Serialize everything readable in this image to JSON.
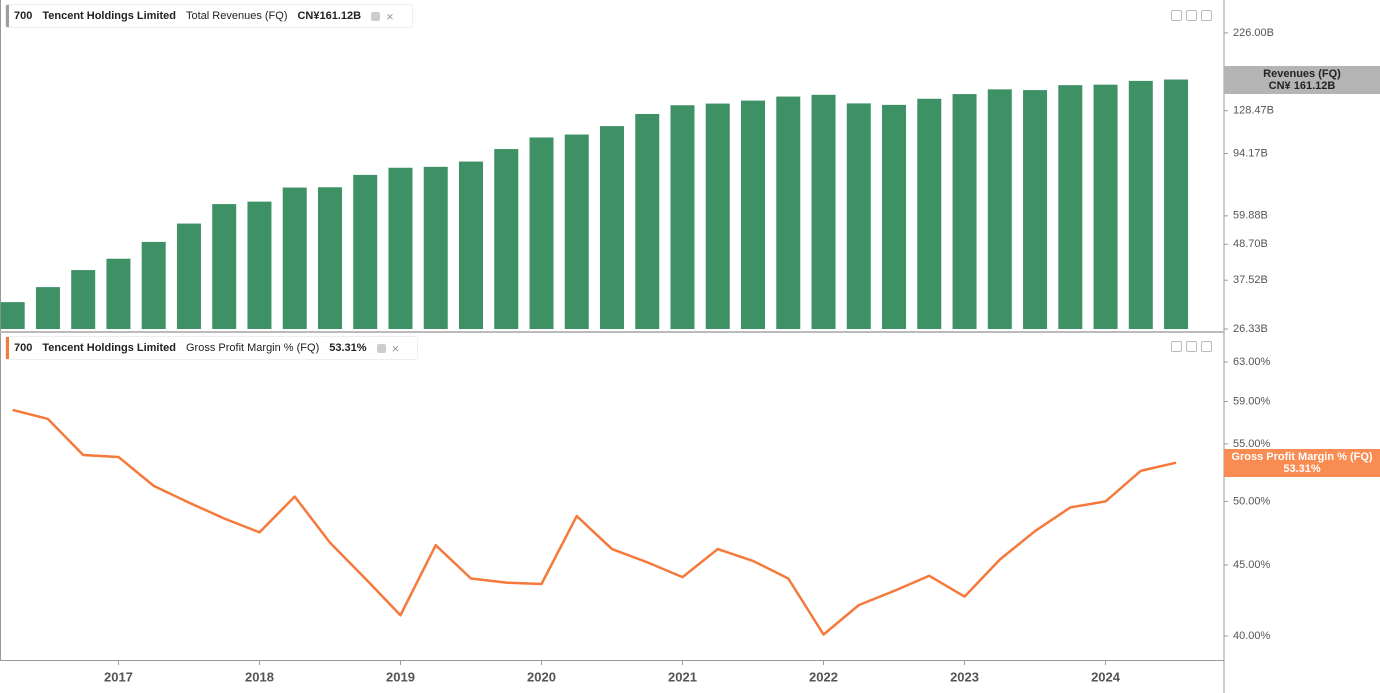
{
  "chart_data": [
    {
      "type": "bar",
      "log_scale": true,
      "ticker": "700",
      "company": "Tencent Holdings Limited",
      "legend_value": "CN¥161.12B",
      "price_label": [
        "Revenues (FQ)",
        "CN¥ 161.12B"
      ],
      "label_color": "#b4b4b4",
      "marker_color": "#9e9e9e",
      "series": [
        {
          "name": "Total Revenues (FQ)",
          "color": "#3d9165",
          "values": [
            32.0,
            35.69,
            40.39,
            43.86,
            49.55,
            56.61,
            65.21,
            66.39,
            73.53,
            73.68,
            80.6,
            84.9,
            85.47,
            88.82,
            97.24,
            105.77,
            108.07,
            114.88,
            125.45,
            133.67,
            135.3,
            138.26,
            142.37,
            144.19,
            135.47,
            134.03,
            140.09,
            144.95,
            149.99,
            149.21,
            154.63,
            155.2,
            159.5,
            161.12
          ]
        }
      ],
      "x": [
        2016.25,
        2016.5,
        2016.75,
        2017.0,
        2017.25,
        2017.5,
        2017.75,
        2018.0,
        2018.25,
        2018.5,
        2018.75,
        2019.0,
        2019.25,
        2019.5,
        2019.75,
        2020.0,
        2020.25,
        2020.5,
        2020.75,
        2021.0,
        2021.25,
        2021.5,
        2021.75,
        2022.0,
        2022.25,
        2022.5,
        2022.75,
        2023.0,
        2023.25,
        2023.5,
        2023.75,
        2024.0,
        2024.25,
        2024.5
      ],
      "xlim": [
        2016.16,
        2024.84
      ],
      "ylim": [
        26.33,
        287
      ],
      "yticks": [
        {
          "value": 26.33,
          "label": "26.33B"
        },
        {
          "value": 37.52,
          "label": "37.52B"
        },
        {
          "value": 48.7,
          "label": "48.70B"
        },
        {
          "value": 59.88,
          "label": "59.88B"
        },
        {
          "value": 94.17,
          "label": "94.17B"
        },
        {
          "value": 128.47,
          "label": "128.47B"
        },
        {
          "value": 226,
          "label": "226.00B"
        }
      ]
    },
    {
      "type": "line",
      "log_scale": true,
      "ticker": "700",
      "company": "Tencent Holdings Limited",
      "legend_value": "53.31%",
      "price_label": [
        "Gross Profit Margin % (FQ)",
        "53.31%"
      ],
      "label_color": "#f98c52",
      "marker_color": "#f5793b",
      "series": [
        {
          "name": "Gross Profit Margin % (FQ)",
          "color": "#f5793b",
          "values": [
            58.18,
            57.32,
            54.0,
            53.82,
            51.3,
            49.9,
            48.6,
            47.5,
            50.4,
            46.7,
            44.0,
            41.4,
            46.5,
            44.0,
            43.7,
            43.6,
            48.8,
            46.2,
            45.2,
            44.1,
            46.2,
            45.3,
            44.0,
            40.1,
            42.1,
            43.1,
            44.2,
            42.7,
            45.4,
            47.6,
            49.5,
            50.0,
            52.6,
            53.31
          ]
        }
      ],
      "x": [
        2016.25,
        2016.5,
        2016.75,
        2017.0,
        2017.25,
        2017.5,
        2017.75,
        2018.0,
        2018.25,
        2018.5,
        2018.75,
        2019.0,
        2019.25,
        2019.5,
        2019.75,
        2020.0,
        2020.25,
        2020.5,
        2020.75,
        2021.0,
        2021.25,
        2021.5,
        2021.75,
        2022.0,
        2022.25,
        2022.5,
        2022.75,
        2023.0,
        2023.25,
        2023.5,
        2023.75,
        2024.0,
        2024.25,
        2024.5
      ],
      "xlim": [
        2016.16,
        2024.84
      ],
      "xticks": [
        2017,
        2018,
        2019,
        2020,
        2021,
        2022,
        2023,
        2024
      ],
      "ylim": [
        38.44,
        65.77
      ],
      "yticks": [
        {
          "value": 40,
          "label": "40.00%"
        },
        {
          "value": 45,
          "label": "45.00%"
        },
        {
          "value": 50,
          "label": "50.00%"
        },
        {
          "value": 55,
          "label": "55.00%"
        },
        {
          "value": 59,
          "label": "59.00%"
        },
        {
          "value": 63,
          "label": "63.00%"
        }
      ]
    }
  ]
}
